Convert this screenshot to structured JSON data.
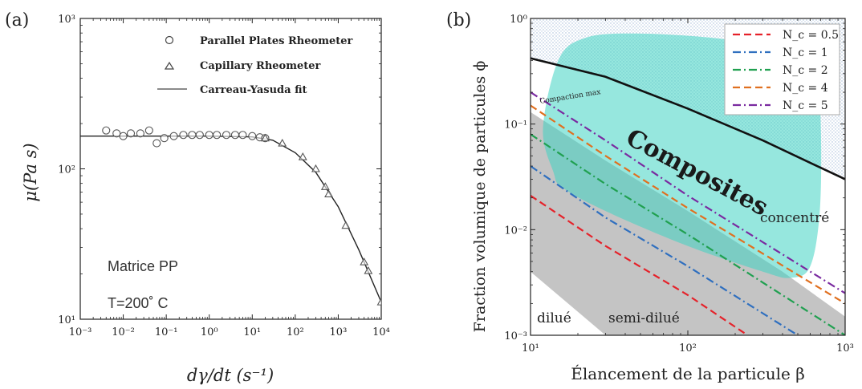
{
  "panel_a": {
    "label": "(a)",
    "xlabel": "dγ/dt  (s⁻¹)",
    "ylabel": "μ(Pa s)",
    "annot1": "Matrice PP",
    "annot2": "T=200˚  C",
    "x_ticks": [
      "10⁻³",
      "10⁻²",
      "10⁻¹",
      "10⁰",
      "10¹",
      "10²",
      "10³",
      "10⁴"
    ],
    "y_ticks": [
      "10¹",
      "10²",
      "10³"
    ],
    "legend": [
      "Parallel Plates Rheometer",
      "Capillary Rheometer",
      "Carreau-Yasuda fit"
    ]
  },
  "panel_b": {
    "label": "(b)",
    "xlabel": "Élancement de la particule β",
    "ylabel": "Fraction volumique de particules ϕ",
    "x_ticks": [
      "10¹",
      "10²",
      "10³"
    ],
    "y_ticks": [
      "10⁰",
      "10⁻¹",
      "10⁻²",
      "10⁻³"
    ],
    "region_composites": "Composites",
    "region_concentre": "concentré",
    "region_dilue": "dilué",
    "region_semidilue": "semi-dilué",
    "compaction_label": "Compaction max",
    "legend": [
      "N_c = 0.5",
      "N_c = 1",
      "N_c = 2",
      "N_c = 4",
      "N_c = 5"
    ]
  },
  "chart_data": [
    {
      "type": "scatter",
      "xlabel": "dγ/dt  (s⁻¹)",
      "ylabel": "μ(Pa s)",
      "xscale": "log",
      "yscale": "log",
      "xlim": [
        0.001,
        10000
      ],
      "ylim": [
        10,
        1000
      ],
      "series": [
        {
          "name": "Parallel Plates Rheometer",
          "marker": "circle",
          "x": [
            0.004,
            0.007,
            0.01,
            0.015,
            0.025,
            0.04,
            0.06,
            0.09,
            0.15,
            0.25,
            0.4,
            0.6,
            1,
            1.5,
            2.5,
            4,
            6,
            10,
            15,
            20
          ],
          "y": [
            180,
            172,
            165,
            172,
            172,
            180,
            148,
            160,
            165,
            168,
            168,
            168,
            168,
            168,
            168,
            168,
            168,
            165,
            162,
            160
          ]
        },
        {
          "name": "Capillary Rheometer",
          "marker": "triangle",
          "x": [
            20,
            50,
            150,
            300,
            500,
            600,
            1500,
            4000,
            5000,
            10000
          ],
          "y": [
            160,
            148,
            120,
            100,
            76,
            68,
            42,
            24,
            21,
            13
          ]
        },
        {
          "name": "Carreau-Yasuda fit",
          "marker": "line",
          "x": [
            0.001,
            0.01,
            0.1,
            1,
            10,
            30,
            100,
            300,
            1000,
            3000,
            10000
          ],
          "y": [
            165,
            165,
            165,
            165,
            163,
            155,
            128,
            95,
            56,
            29,
            13
          ]
        }
      ]
    },
    {
      "type": "line",
      "xlabel": "Élancement de la particule β",
      "ylabel": "Fraction volumique de particules ϕ",
      "xscale": "log",
      "yscale": "log",
      "xlim": [
        10,
        1000
      ],
      "ylim": [
        0.001,
        1
      ],
      "legend_position": "top-right",
      "series": [
        {
          "name": "Compaction max",
          "color": "#111111",
          "style": "solid",
          "x": [
            10,
            30,
            100,
            300,
            1000
          ],
          "y": [
            0.42,
            0.28,
            0.14,
            0.07,
            0.03
          ]
        },
        {
          "name": "N_c = 0.5",
          "color": "#e5222a",
          "style": "dashed",
          "x": [
            10,
            30,
            100,
            300
          ],
          "y": [
            0.021,
            0.007,
            0.0024,
            0.0008
          ]
        },
        {
          "name": "N_c = 1",
          "color": "#2f6fbf",
          "style": "dashdot",
          "x": [
            10,
            30,
            100,
            500
          ],
          "y": [
            0.04,
            0.013,
            0.0045,
            0.001
          ]
        },
        {
          "name": "N_c = 2",
          "color": "#20a050",
          "style": "dashdot",
          "x": [
            10,
            30,
            100,
            1000
          ],
          "y": [
            0.08,
            0.027,
            0.009,
            0.001
          ]
        },
        {
          "name": "N_c = 4",
          "color": "#e07020",
          "style": "dashed",
          "x": [
            10,
            30,
            100,
            1000
          ],
          "y": [
            0.15,
            0.05,
            0.016,
            0.002
          ]
        },
        {
          "name": "N_c = 5",
          "color": "#7a2aa0",
          "style": "dashdot",
          "x": [
            10,
            30,
            100,
            1000
          ],
          "y": [
            0.2,
            0.07,
            0.021,
            0.0025
          ]
        }
      ]
    }
  ],
  "colors": {
    "composites_fill": "#3fd4c2",
    "semidilute_fill": "#bdbdbd",
    "hatch": "#9fb8d6"
  }
}
